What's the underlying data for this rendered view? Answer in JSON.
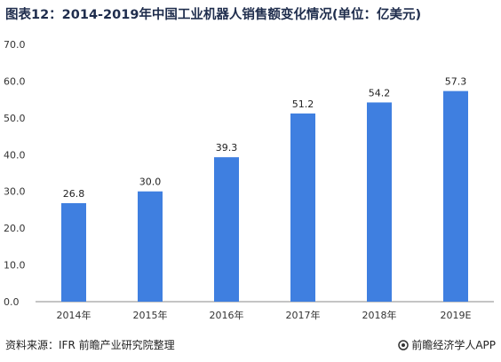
{
  "chart_data": {
    "type": "bar",
    "title": "图表12：2014-2019年中国工业机器人销售额变化情况(单位：亿美元)",
    "categories": [
      "2014年",
      "2015年",
      "2016年",
      "2017年",
      "2018年",
      "2019E"
    ],
    "values": [
      26.8,
      30.0,
      39.3,
      51.2,
      54.2,
      57.3
    ],
    "data_labels": [
      "26.8",
      "30.0",
      "39.3",
      "51.2",
      "54.2",
      "57.3"
    ],
    "ylim": [
      0,
      70
    ],
    "yticks": [
      0,
      10,
      20,
      30,
      40,
      50,
      60,
      70
    ],
    "ytick_labels": [
      "0.0",
      "10.0",
      "20.0",
      "30.0",
      "40.0",
      "50.0",
      "60.0",
      "70.0"
    ],
    "bar_color": "#3f7fe0",
    "grid": false
  },
  "footer": {
    "source": "资料来源：IFR 前瞻产业研究院整理",
    "brand": "前瞻经济学人APP",
    "brand_icon": "prospective-logo-icon"
  },
  "colors": {
    "title": "#1f2d4d",
    "bar": "#3f7fe0",
    "axis": "#888888"
  }
}
